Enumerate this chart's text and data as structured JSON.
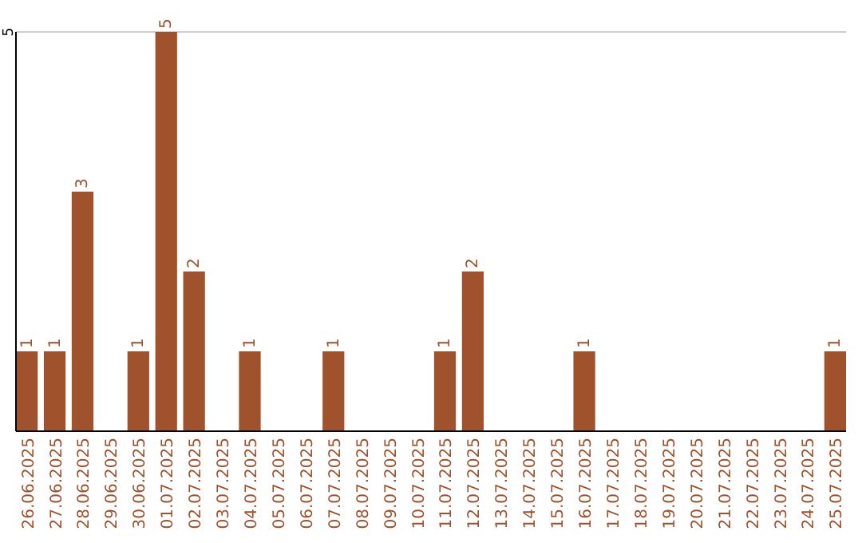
{
  "chart_data": {
    "type": "bar",
    "categories": [
      "26.06.2025",
      "27.06.2025",
      "28.06.2025",
      "29.06.2025",
      "30.06.2025",
      "01.07.2025",
      "02.07.2025",
      "03.07.2025",
      "04.07.2025",
      "05.07.2025",
      "06.07.2025",
      "07.07.2025",
      "08.07.2025",
      "09.07.2025",
      "10.07.2025",
      "11.07.2025",
      "12.07.2025",
      "13.07.2025",
      "14.07.2025",
      "15.07.2025",
      "16.07.2025",
      "17.07.2025",
      "18.07.2025",
      "19.07.2025",
      "20.07.2025",
      "21.07.2025",
      "22.07.2025",
      "23.07.2025",
      "24.07.2025",
      "25.07.2025"
    ],
    "values": [
      1,
      1,
      3,
      0,
      1,
      5,
      2,
      0,
      1,
      0,
      0,
      1,
      0,
      0,
      0,
      1,
      2,
      0,
      0,
      0,
      1,
      0,
      0,
      0,
      0,
      0,
      0,
      0,
      0,
      1
    ],
    "value_labels": [
      "1",
      "1",
      "3",
      null,
      "1",
      "5",
      "2",
      null,
      "1",
      null,
      null,
      "1",
      null,
      null,
      null,
      "1",
      "2",
      null,
      null,
      null,
      "1",
      null,
      null,
      null,
      null,
      null,
      null,
      null,
      null,
      "1"
    ],
    "color": "#a0522d",
    "ylim": [
      0,
      5
    ],
    "yticks": [
      5
    ]
  }
}
